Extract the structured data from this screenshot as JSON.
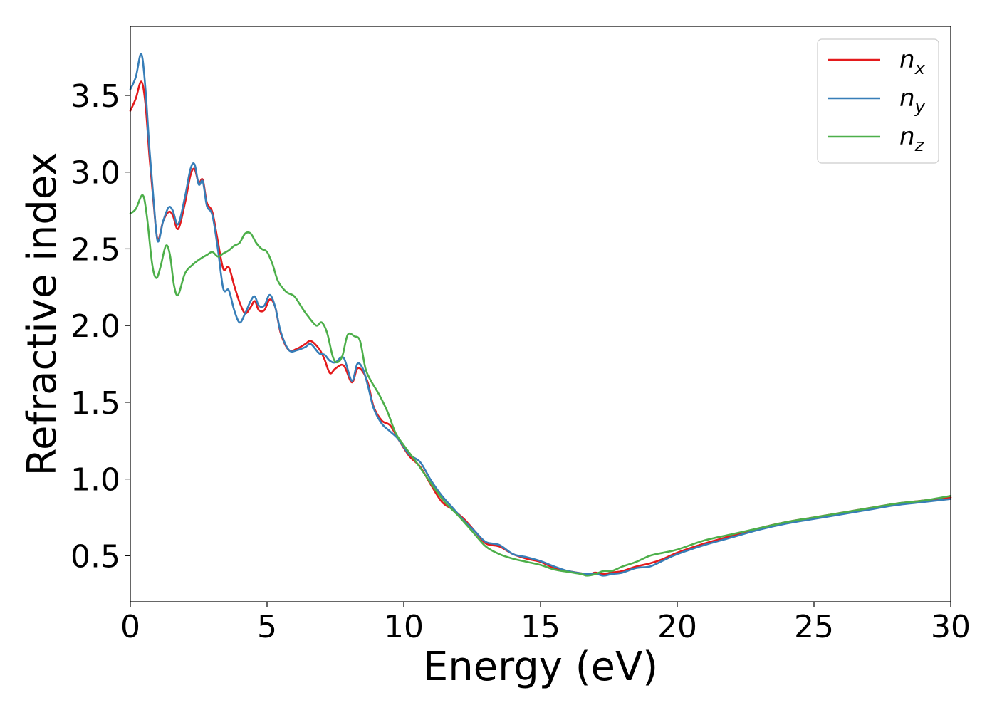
{
  "chart_data": {
    "type": "line",
    "xlabel": "Energy (eV)",
    "ylabel": "Refractive index",
    "xlim": [
      0,
      30
    ],
    "ylim": [
      0.2,
      3.95
    ],
    "xticks": [
      0,
      5,
      10,
      15,
      20,
      25,
      30
    ],
    "xtick_labels": [
      "0",
      "5",
      "10",
      "15",
      "20",
      "25",
      "30"
    ],
    "yticks": [
      0.5,
      1.0,
      1.5,
      2.0,
      2.5,
      3.0,
      3.5
    ],
    "ytick_labels": [
      "0.5",
      "1.0",
      "1.5",
      "2.0",
      "2.5",
      "3.0",
      "3.5"
    ],
    "grid": false,
    "legend": {
      "placement": "top-right"
    },
    "series": [
      {
        "name_main": "n",
        "name_sub": "x",
        "color": "#e41a1c",
        "x": [
          0,
          0.2,
          0.4,
          0.55,
          0.7,
          0.85,
          1.0,
          1.2,
          1.4,
          1.55,
          1.75,
          2.0,
          2.2,
          2.35,
          2.5,
          2.65,
          2.8,
          3.0,
          3.2,
          3.4,
          3.6,
          3.8,
          4.0,
          4.2,
          4.4,
          4.55,
          4.7,
          4.9,
          5.1,
          5.3,
          5.5,
          5.8,
          6.1,
          6.4,
          6.6,
          6.9,
          7.1,
          7.3,
          7.5,
          7.8,
          8.1,
          8.3,
          8.5,
          8.7,
          8.9,
          9.2,
          9.5,
          9.8,
          10.2,
          10.6,
          11.0,
          11.4,
          11.8,
          12.2,
          12.6,
          13.0,
          13.5,
          14.0,
          14.5,
          15.0,
          15.5,
          16.0,
          16.5,
          16.8,
          17.0,
          17.3,
          17.6,
          18.0,
          18.5,
          19.0,
          19.5,
          20.0,
          21.0,
          22.0,
          23.0,
          24.0,
          25.0,
          26.0,
          27.0,
          28.0,
          29.0,
          30.0
        ],
        "y": [
          3.4,
          3.48,
          3.59,
          3.45,
          3.1,
          2.8,
          2.56,
          2.68,
          2.74,
          2.72,
          2.63,
          2.8,
          2.98,
          3.02,
          2.93,
          2.95,
          2.8,
          2.74,
          2.55,
          2.37,
          2.38,
          2.26,
          2.15,
          2.08,
          2.12,
          2.16,
          2.1,
          2.1,
          2.17,
          2.12,
          1.95,
          1.84,
          1.85,
          1.88,
          1.9,
          1.85,
          1.78,
          1.69,
          1.72,
          1.74,
          1.63,
          1.72,
          1.7,
          1.62,
          1.47,
          1.38,
          1.35,
          1.26,
          1.15,
          1.08,
          0.96,
          0.85,
          0.8,
          0.74,
          0.66,
          0.58,
          0.56,
          0.51,
          0.48,
          0.46,
          0.42,
          0.4,
          0.385,
          0.38,
          0.39,
          0.38,
          0.39,
          0.4,
          0.43,
          0.45,
          0.48,
          0.52,
          0.58,
          0.63,
          0.68,
          0.72,
          0.75,
          0.78,
          0.81,
          0.84,
          0.86,
          0.88
        ]
      },
      {
        "name_main": "n",
        "name_sub": "y",
        "color": "#377eb8",
        "x": [
          0,
          0.2,
          0.4,
          0.55,
          0.7,
          0.85,
          1.0,
          1.2,
          1.4,
          1.55,
          1.75,
          2.0,
          2.2,
          2.35,
          2.5,
          2.65,
          2.8,
          3.0,
          3.2,
          3.4,
          3.6,
          3.8,
          4.0,
          4.2,
          4.4,
          4.55,
          4.7,
          4.9,
          5.1,
          5.3,
          5.5,
          5.8,
          6.1,
          6.4,
          6.6,
          6.9,
          7.1,
          7.3,
          7.5,
          7.8,
          8.1,
          8.3,
          8.5,
          8.7,
          8.9,
          9.2,
          9.5,
          9.8,
          10.2,
          10.6,
          11.0,
          11.4,
          11.8,
          12.2,
          12.6,
          13.0,
          13.5,
          14.0,
          14.5,
          15.0,
          15.5,
          16.0,
          16.5,
          16.8,
          17.0,
          17.3,
          17.6,
          18.0,
          18.5,
          19.0,
          19.5,
          20.0,
          21.0,
          22.0,
          23.0,
          24.0,
          25.0,
          26.0,
          27.0,
          28.0,
          29.0,
          30.0
        ],
        "y": [
          3.54,
          3.62,
          3.77,
          3.55,
          3.15,
          2.82,
          2.55,
          2.68,
          2.77,
          2.75,
          2.66,
          2.84,
          3.02,
          3.05,
          2.92,
          2.94,
          2.78,
          2.72,
          2.5,
          2.24,
          2.23,
          2.1,
          2.02,
          2.08,
          2.16,
          2.19,
          2.13,
          2.13,
          2.2,
          2.12,
          1.96,
          1.84,
          1.84,
          1.86,
          1.88,
          1.82,
          1.81,
          1.77,
          1.76,
          1.79,
          1.64,
          1.75,
          1.72,
          1.6,
          1.46,
          1.36,
          1.31,
          1.26,
          1.16,
          1.11,
          0.99,
          0.89,
          0.81,
          0.73,
          0.66,
          0.59,
          0.57,
          0.51,
          0.49,
          0.465,
          0.43,
          0.4,
          0.385,
          0.38,
          0.385,
          0.37,
          0.38,
          0.39,
          0.42,
          0.43,
          0.47,
          0.51,
          0.57,
          0.62,
          0.67,
          0.71,
          0.74,
          0.77,
          0.8,
          0.83,
          0.85,
          0.87
        ]
      },
      {
        "name_main": "n",
        "name_sub": "z",
        "color": "#4daf4a",
        "x": [
          0,
          0.2,
          0.45,
          0.6,
          0.8,
          0.95,
          1.1,
          1.3,
          1.45,
          1.6,
          1.75,
          2.0,
          2.3,
          2.6,
          2.8,
          3.0,
          3.2,
          3.4,
          3.6,
          3.8,
          4.0,
          4.2,
          4.4,
          4.6,
          4.8,
          5.0,
          5.2,
          5.4,
          5.7,
          6.0,
          6.3,
          6.5,
          6.8,
          7.0,
          7.2,
          7.4,
          7.55,
          7.75,
          7.95,
          8.2,
          8.4,
          8.6,
          8.8,
          9.1,
          9.4,
          9.7,
          10.0,
          10.5,
          11.0,
          11.5,
          12.0,
          12.5,
          13.0,
          13.5,
          14.0,
          14.5,
          15.0,
          15.5,
          16.0,
          16.5,
          16.7,
          17.0,
          17.3,
          17.6,
          18.0,
          18.5,
          19.0,
          19.5,
          20.0,
          21.0,
          22.0,
          23.0,
          24.0,
          25.0,
          26.0,
          27.0,
          28.0,
          29.0,
          30.0
        ],
        "y": [
          2.73,
          2.76,
          2.85,
          2.72,
          2.4,
          2.31,
          2.38,
          2.52,
          2.46,
          2.26,
          2.2,
          2.34,
          2.4,
          2.44,
          2.46,
          2.48,
          2.45,
          2.47,
          2.49,
          2.52,
          2.54,
          2.6,
          2.6,
          2.54,
          2.5,
          2.48,
          2.4,
          2.29,
          2.22,
          2.19,
          2.11,
          2.06,
          2.0,
          2.02,
          1.95,
          1.8,
          1.76,
          1.8,
          1.94,
          1.93,
          1.9,
          1.72,
          1.64,
          1.55,
          1.44,
          1.3,
          1.22,
          1.1,
          0.97,
          0.85,
          0.76,
          0.66,
          0.56,
          0.51,
          0.48,
          0.46,
          0.44,
          0.41,
          0.395,
          0.38,
          0.37,
          0.38,
          0.4,
          0.4,
          0.43,
          0.46,
          0.5,
          0.52,
          0.54,
          0.6,
          0.64,
          0.68,
          0.72,
          0.75,
          0.78,
          0.81,
          0.84,
          0.86,
          0.89
        ]
      }
    ]
  }
}
